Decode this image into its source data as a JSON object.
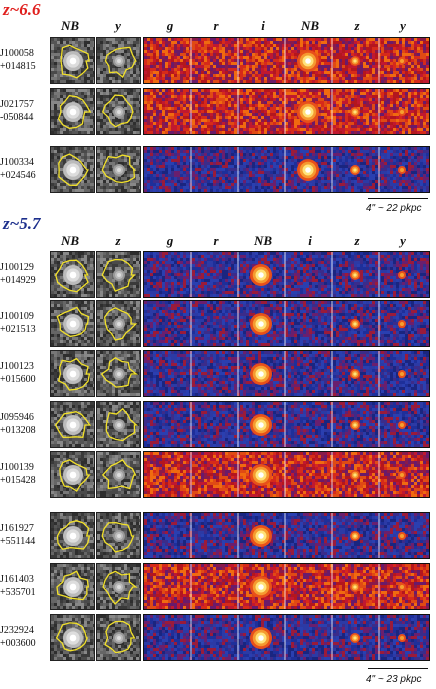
{
  "sections": [
    {
      "title": "z~6.6",
      "title_color": "#e0201e",
      "gray_bands": [
        "NB",
        "y"
      ],
      "color_bands": [
        "g",
        "r",
        "i",
        "NB",
        "z",
        "y"
      ],
      "objects": [
        {
          "name": "J100058\n+014815",
          "line1": "J100058",
          "line2": "+014815",
          "style": "red"
        },
        {
          "name": "J021757\n-050844",
          "line1": "J021757",
          "line2": "-050844",
          "style": "red"
        },
        {
          "name": "J100334\n+024546",
          "line1": "J100334",
          "line2": "+024546",
          "style": "blue"
        }
      ],
      "scale_label": "4\" ~ 22 pkpc"
    },
    {
      "title": "z~5.7",
      "title_color": "#1c2f8c",
      "gray_bands": [
        "NB",
        "z"
      ],
      "color_bands": [
        "g",
        "r",
        "NB",
        "i",
        "z",
        "y"
      ],
      "objects": [
        {
          "line1": "J100129",
          "line2": "+014929",
          "style": "blue"
        },
        {
          "line1": "J100109",
          "line2": "+021513",
          "style": "blue"
        },
        {
          "line1": "J100123",
          "line2": "+015600",
          "style": "blue"
        },
        {
          "line1": "J095946",
          "line2": "+013208",
          "style": "blue"
        },
        {
          "line1": "J100139",
          "line2": "+015428",
          "style": "red"
        },
        {
          "line1": "J161927",
          "line2": "+551144",
          "style": "blue"
        },
        {
          "line1": "J161403",
          "line2": "+535701",
          "style": "red"
        },
        {
          "line1": "J232924",
          "line2": "+003600",
          "style": "blue"
        }
      ],
      "scale_label": "4\" ~ 23 pkpc"
    }
  ],
  "colors": {
    "contour": "#f2e12a",
    "noise_blue": "#1e2f9a",
    "noise_red": "#c41a1a",
    "hot": "#fff6b0"
  }
}
